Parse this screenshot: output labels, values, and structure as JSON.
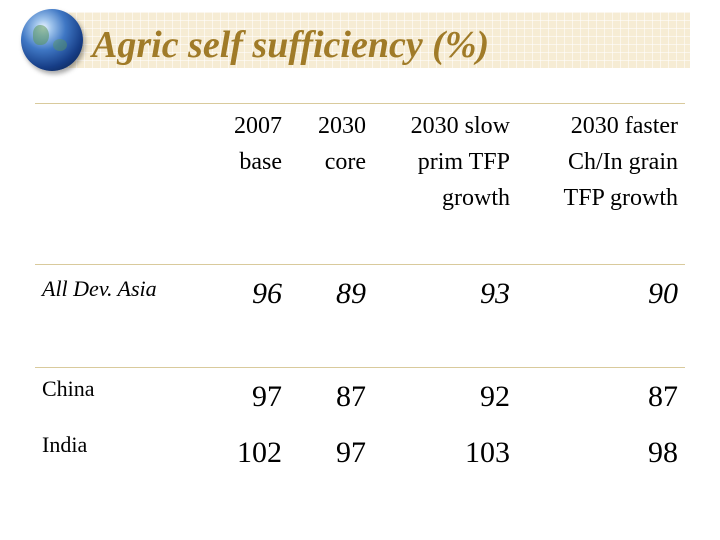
{
  "slide": {
    "title": "Agric self sufficiency (%)",
    "accent_color": "#a07b28",
    "title_band_color": "#f6ecd4",
    "logo_icon": "globe-icon"
  },
  "table": {
    "columns": [
      {
        "line1": "2007",
        "line2": "base",
        "line3": ""
      },
      {
        "line1": "2030",
        "line2": "core",
        "line3": ""
      },
      {
        "line1": "2030 slow",
        "line2": "prim TFP",
        "line3": "growth"
      },
      {
        "line1": "2030 faster",
        "line2": "Ch/In grain",
        "line3": "TFP growth"
      }
    ],
    "rows": [
      {
        "label": "All Dev. Asia",
        "values": [
          "96",
          "89",
          "93",
          "90"
        ]
      },
      {
        "label": "China",
        "values": [
          "97",
          "87",
          "92",
          "87"
        ]
      },
      {
        "label": "India",
        "values": [
          "102",
          "97",
          "103",
          "98"
        ]
      }
    ]
  }
}
